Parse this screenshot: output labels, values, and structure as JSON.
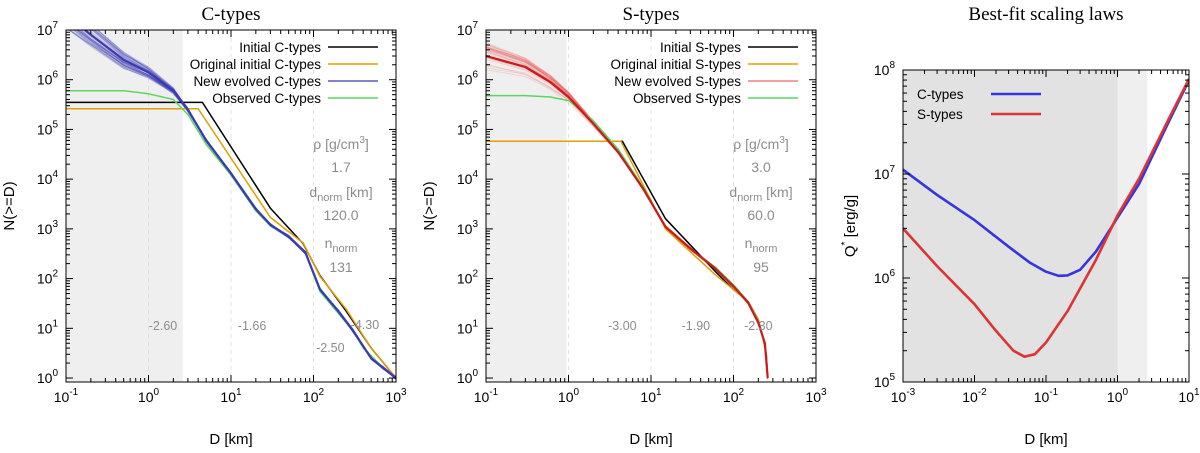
{
  "panels": [
    {
      "id": "c",
      "title": "C-types",
      "xlabel": "D [km]",
      "ylabel": "N(>=D)",
      "xlog": [
        -1,
        3
      ],
      "ylog": [
        -0.08,
        7
      ],
      "xticks": [
        {
          "b": "10",
          "e": "-1"
        },
        {
          "b": "10",
          "e": "0"
        },
        {
          "b": "10",
          "e": "1"
        },
        {
          "b": "10",
          "e": "2"
        },
        {
          "b": "10",
          "e": "3"
        }
      ],
      "yticks": [
        {
          "b": "10",
          "e": "0"
        },
        {
          "b": "10",
          "e": "1"
        },
        {
          "b": "10",
          "e": "2"
        },
        {
          "b": "10",
          "e": "3"
        },
        {
          "b": "10",
          "e": "4"
        },
        {
          "b": "10",
          "e": "5"
        },
        {
          "b": "10",
          "e": "6"
        },
        {
          "b": "10",
          "e": "7"
        }
      ],
      "shade_to_D": 2.6,
      "ensemble_color": "#3a3ab4",
      "legend": [
        {
          "label": "Initial C-types",
          "color": "#000000"
        },
        {
          "label": "Original initial C-types",
          "color": "#e0a000"
        },
        {
          "label": "New evolved C-types",
          "color": "#5b5bb8"
        },
        {
          "label": "Observed C-types",
          "color": "#5cd65c"
        }
      ],
      "notes": {
        "rho_label": "ρ [g/cm",
        "rho_unit_sup": "3",
        "rho_value": "1.7",
        "dnorm_label": "d",
        "dnorm_sub": "norm",
        "dnorm_unit": "[km]",
        "dnorm_value": "120.0",
        "nnorm_label": "n",
        "nnorm_sub": "norm",
        "nnorm_value": "131"
      },
      "slopes": [
        "-2.60",
        "-1.66",
        "-2.50",
        "-4.30"
      ],
      "series": [
        {
          "name": "Initial C-types",
          "color": "#000000",
          "points": [
            [
              0.1,
              350000
            ],
            [
              4.5,
              350000
            ],
            [
              30,
              2600
            ],
            [
              75,
              500
            ],
            [
              120,
              115
            ],
            [
              250,
              22
            ],
            [
              500,
              4
            ],
            [
              1000,
              1
            ]
          ]
        },
        {
          "name": "Original initial C-types",
          "color": "#e0a000",
          "points": [
            [
              0.1,
              260000
            ],
            [
              4.0,
              260000
            ],
            [
              30,
              1700
            ],
            [
              75,
              520
            ],
            [
              120,
              110
            ],
            [
              250,
              24
            ],
            [
              500,
              4
            ],
            [
              1000,
              1
            ]
          ]
        },
        {
          "name": "Observed C-types",
          "color": "#5cd65c",
          "points": [
            [
              0.1,
              600000
            ],
            [
              0.5,
              600000
            ],
            [
              1,
              520000
            ],
            [
              2,
              400000
            ],
            [
              3,
              200000
            ],
            [
              5,
              50000
            ],
            [
              10,
              12000
            ],
            [
              20,
              2300
            ],
            [
              30,
              1150
            ],
            [
              50,
              700
            ],
            [
              80,
              330
            ],
            [
              120,
              55
            ],
            [
              200,
              20
            ],
            [
              300,
              9
            ],
            [
              400,
              4
            ],
            [
              500,
              2.8
            ],
            [
              700,
              1.6
            ],
            [
              1000,
              1
            ]
          ]
        },
        {
          "name": "New evolved C-types",
          "color": "#3a3ab4",
          "points": [
            [
              0.1,
              20000000
            ],
            [
              0.2,
              8000000
            ],
            [
              0.5,
              2500000
            ],
            [
              1,
              1400000
            ],
            [
              2,
              600000
            ],
            [
              3,
              250000
            ],
            [
              5,
              60000
            ],
            [
              10,
              13000
            ],
            [
              20,
              2500
            ],
            [
              30,
              1200
            ],
            [
              50,
              700
            ],
            [
              80,
              330
            ],
            [
              120,
              60
            ],
            [
              200,
              22
            ],
            [
              300,
              9
            ],
            [
              500,
              2.5
            ],
            [
              700,
              1.6
            ],
            [
              1000,
              1
            ]
          ]
        }
      ]
    },
    {
      "id": "s",
      "title": "S-types",
      "xlabel": "D [km]",
      "ylabel": "N(>=D)",
      "xlog": [
        -1,
        3
      ],
      "ylog": [
        -0.08,
        7
      ],
      "xticks": [
        {
          "b": "10",
          "e": "-1"
        },
        {
          "b": "10",
          "e": "0"
        },
        {
          "b": "10",
          "e": "1"
        },
        {
          "b": "10",
          "e": "2"
        },
        {
          "b": "10",
          "e": "3"
        }
      ],
      "yticks": [
        {
          "b": "10",
          "e": "0"
        },
        {
          "b": "10",
          "e": "1"
        },
        {
          "b": "10",
          "e": "2"
        },
        {
          "b": "10",
          "e": "3"
        },
        {
          "b": "10",
          "e": "4"
        },
        {
          "b": "10",
          "e": "5"
        },
        {
          "b": "10",
          "e": "6"
        },
        {
          "b": "10",
          "e": "7"
        }
      ],
      "shade_to_D": 0.95,
      "ensemble_color": "#e84a4a",
      "legend": [
        {
          "label": "Initial S-types",
          "color": "#000000"
        },
        {
          "label": "Original initial S-types",
          "color": "#e0a000"
        },
        {
          "label": "New evolved S-types",
          "color": "#f08080"
        },
        {
          "label": "Observed S-types",
          "color": "#5cd65c"
        }
      ],
      "notes": {
        "rho_label": "ρ [g/cm",
        "rho_unit_sup": "3",
        "rho_value": "3.0",
        "dnorm_label": "d",
        "dnorm_sub": "norm",
        "dnorm_unit": "[km]",
        "dnorm_value": "60.0",
        "nnorm_label": "n",
        "nnorm_sub": "norm",
        "nnorm_value": "95"
      },
      "slopes": [
        "-3.00",
        "-1.90",
        "-2.30"
      ],
      "series": [
        {
          "name": "Initial S-types",
          "color": "#000000",
          "points": [
            [
              0.1,
              58000
            ],
            [
              4.5,
              58000
            ],
            [
              15,
              1600
            ],
            [
              60,
              140
            ],
            [
              100,
              60
            ],
            [
              150,
              35
            ],
            [
              200,
              15
            ],
            [
              230,
              6
            ],
            [
              250,
              3
            ],
            [
              260,
              1
            ]
          ]
        },
        {
          "name": "Original initial S-types",
          "color": "#e0a000",
          "points": [
            [
              0.1,
              58000
            ],
            [
              4.3,
              58000
            ],
            [
              15,
              1000
            ],
            [
              60,
              120
            ],
            [
              100,
              60
            ],
            [
              150,
              35
            ],
            [
              200,
              15
            ],
            [
              230,
              6
            ],
            [
              250,
              3
            ],
            [
              260,
              1
            ]
          ]
        },
        {
          "name": "Observed S-types",
          "color": "#5cd65c",
          "points": [
            [
              0.1,
              480000
            ],
            [
              0.3,
              480000
            ],
            [
              0.6,
              450000
            ],
            [
              1,
              380000
            ],
            [
              2,
              150000
            ],
            [
              4,
              40000
            ],
            [
              8,
              7000
            ],
            [
              15,
              1100
            ],
            [
              30,
              400
            ],
            [
              60,
              170
            ],
            [
              100,
              75
            ],
            [
              150,
              35
            ],
            [
              200,
              14
            ],
            [
              240,
              5
            ],
            [
              260,
              1
            ]
          ]
        },
        {
          "name": "New evolved S-types",
          "color": "#cc1a1a",
          "points": [
            [
              0.1,
              3000000
            ],
            [
              0.3,
              1800000
            ],
            [
              0.6,
              900000
            ],
            [
              1,
              450000
            ],
            [
              2,
              130000
            ],
            [
              4,
              35000
            ],
            [
              8,
              6500
            ],
            [
              15,
              1100
            ],
            [
              30,
              400
            ],
            [
              60,
              160
            ],
            [
              100,
              70
            ],
            [
              150,
              33
            ],
            [
              200,
              13
            ],
            [
              240,
              5
            ],
            [
              260,
              1
            ]
          ]
        }
      ]
    },
    {
      "id": "q",
      "title": "Best-fit scaling laws",
      "xlabel": "D [km]",
      "ylabel": "Q",
      "ylabel_sup": "*",
      "ylabel_unit": " [erg/g]",
      "xlog": [
        -3,
        1
      ],
      "ylog": [
        5,
        8
      ],
      "xticks": [
        {
          "b": "10",
          "e": "-3"
        },
        {
          "b": "10",
          "e": "-2"
        },
        {
          "b": "10",
          "e": "-1"
        },
        {
          "b": "10",
          "e": "0"
        },
        {
          "b": "10",
          "e": "1"
        }
      ],
      "yticks": [
        {
          "b": "10",
          "e": "5"
        },
        {
          "b": "10",
          "e": "6"
        },
        {
          "b": "10",
          "e": "7"
        },
        {
          "b": "10",
          "e": "8"
        }
      ],
      "shade_dark_to_D": 1.0,
      "shade_light_to_D": 2.6,
      "legend": [
        {
          "label": "C-types",
          "color": "#3535e0"
        },
        {
          "label": "S-types",
          "color": "#dd3333"
        }
      ],
      "series": [
        {
          "name": "C-types",
          "color": "#3535e0",
          "points": [
            [
              0.001,
              11000000
            ],
            [
              0.003,
              6300000
            ],
            [
              0.01,
              3600000
            ],
            [
              0.03,
              2000000
            ],
            [
              0.06,
              1400000
            ],
            [
              0.1,
              1150000
            ],
            [
              0.15,
              1050000
            ],
            [
              0.2,
              1060000
            ],
            [
              0.3,
              1200000
            ],
            [
              0.5,
              1800000
            ],
            [
              1,
              3800000
            ],
            [
              2,
              8000000
            ],
            [
              5,
              30000000
            ],
            [
              10,
              80000000
            ]
          ]
        },
        {
          "name": "S-types",
          "color": "#dd3333",
          "points": [
            [
              0.001,
              3000000
            ],
            [
              0.003,
              1300000
            ],
            [
              0.01,
              560000
            ],
            [
              0.02,
              310000
            ],
            [
              0.035,
              200000
            ],
            [
              0.05,
              175000
            ],
            [
              0.07,
              185000
            ],
            [
              0.1,
              240000
            ],
            [
              0.2,
              480000
            ],
            [
              0.5,
              1500000
            ],
            [
              1,
              4000000
            ],
            [
              2,
              9000000
            ],
            [
              5,
              32000000
            ],
            [
              10,
              82000000
            ]
          ]
        }
      ]
    }
  ]
}
